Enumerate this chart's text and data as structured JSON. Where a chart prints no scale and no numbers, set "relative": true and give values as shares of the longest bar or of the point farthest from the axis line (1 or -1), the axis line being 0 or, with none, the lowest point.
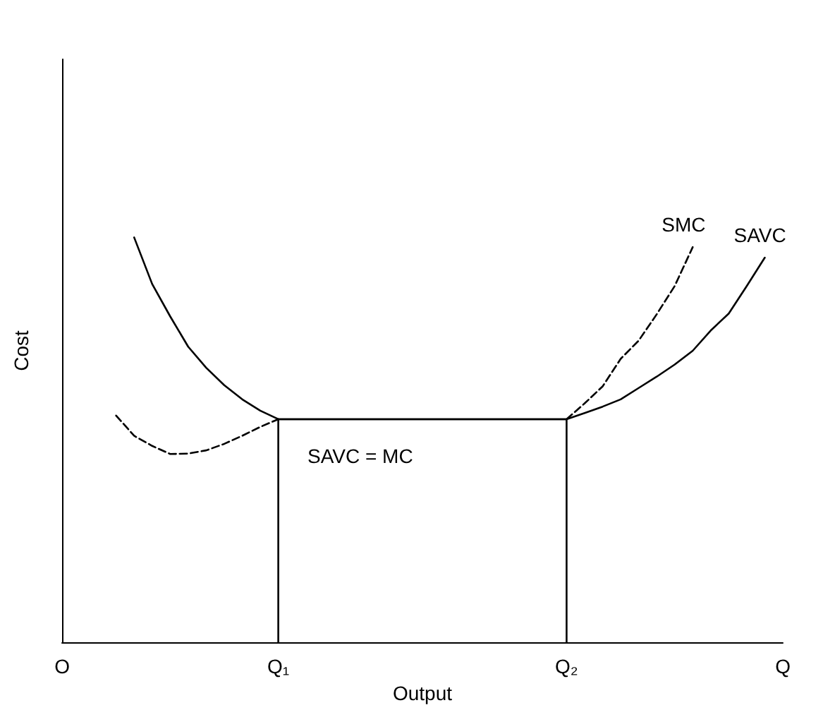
{
  "chart_data": {
    "type": "line",
    "relative": true,
    "xlabel": "Output",
    "ylabel": "Cost",
    "categories": [
      "O",
      null,
      null,
      null,
      null,
      null,
      null,
      null,
      null,
      null,
      null,
      null,
      "Q₁",
      null,
      null,
      null,
      null,
      null,
      null,
      null,
      null,
      null,
      null,
      null,
      null,
      null,
      null,
      null,
      "Q₂",
      null,
      null,
      null,
      null,
      null,
      null,
      null,
      null,
      null,
      null,
      null,
      "Q"
    ],
    "series": [
      {
        "name": "SAVC",
        "color": "#000000",
        "line_style": "solid",
        "values": [
          null,
          null,
          null,
          null,
          1.0,
          0.885,
          0.805,
          0.73,
          0.678,
          0.635,
          0.6,
          0.572,
          0.551,
          0.551,
          0.551,
          0.551,
          0.551,
          0.551,
          0.551,
          0.551,
          0.551,
          0.551,
          0.551,
          0.551,
          0.551,
          0.551,
          0.551,
          0.551,
          0.551,
          0.566,
          0.582,
          0.6,
          0.628,
          0.656,
          0.686,
          0.72,
          0.77,
          0.812,
          0.88,
          0.95,
          null
        ]
      },
      {
        "name": "SMC",
        "color": "#000000",
        "line_style": "dashed",
        "values": [
          null,
          null,
          null,
          0.56,
          0.51,
          0.485,
          0.465,
          0.466,
          0.474,
          0.49,
          0.51,
          0.532,
          0.551,
          null,
          null,
          null,
          null,
          null,
          null,
          null,
          null,
          null,
          null,
          null,
          null,
          null,
          null,
          null,
          0.551,
          0.59,
          0.632,
          0.7,
          0.745,
          0.81,
          0.88,
          0.976,
          null,
          null,
          null,
          null,
          null
        ]
      },
      {
        "color": "#000000",
        "line_style": "solid",
        "x": [
          "Q₁",
          "Q₁",
          "Q₂",
          "Q₂"
        ],
        "values": [
          0,
          0.551,
          0.551,
          0
        ]
      }
    ],
    "annotations": [
      "SAVC = MC"
    ],
    "legend": false,
    "grid": false,
    "marker": "none"
  }
}
